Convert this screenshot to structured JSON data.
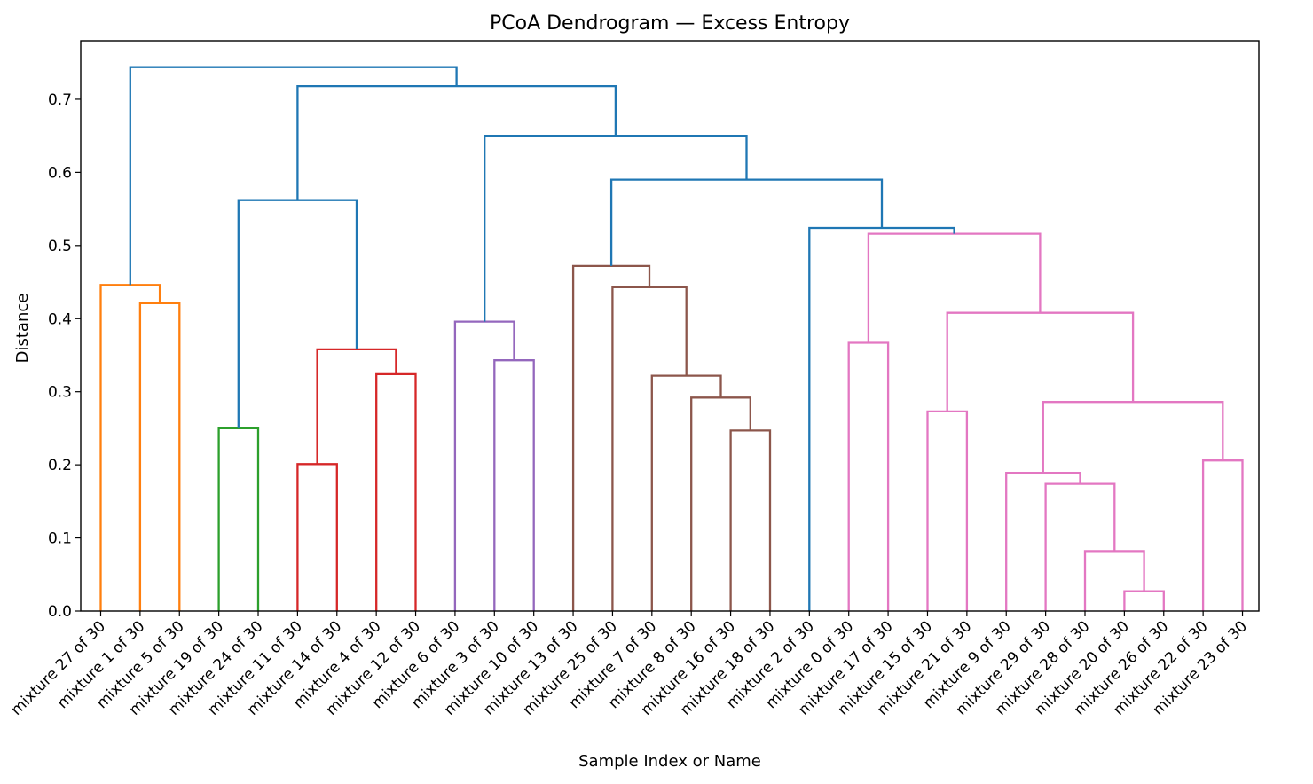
{
  "chart_data": {
    "type": "dendrogram",
    "title": "PCoA Dendrogram — Excess Entropy",
    "xlabel": "Sample Index or Name",
    "ylabel": "Distance",
    "ylim": [
      0,
      0.78
    ],
    "yticks": [
      "0.0",
      "0.1",
      "0.2",
      "0.3",
      "0.4",
      "0.5",
      "0.6",
      "0.7"
    ],
    "grid": false,
    "leaves": [
      "mixture 27 of 30",
      "mixture 1 of 30",
      "mixture 5 of 30",
      "mixture 19 of 30",
      "mixture 24 of 30",
      "mixture 11 of 30",
      "mixture 14 of 30",
      "mixture 4 of 30",
      "mixture 12 of 30",
      "mixture 6 of 30",
      "mixture 3 of 30",
      "mixture 10 of 30",
      "mixture 13 of 30",
      "mixture 25 of 30",
      "mixture 7 of 30",
      "mixture 8 of 30",
      "mixture 16 of 30",
      "mixture 18 of 30",
      "mixture 2 of 30",
      "mixture 0 of 30",
      "mixture 17 of 30",
      "mixture 15 of 30",
      "mixture 21 of 30",
      "mixture 9 of 30",
      "mixture 29 of 30",
      "mixture 28 of 30",
      "mixture 20 of 30",
      "mixture 26 of 30",
      "mixture 22 of 30",
      "mixture 23 of 30"
    ],
    "colors": {
      "above_threshold": "#1f77b4",
      "orange": "#ff7f0e",
      "green": "#2ca02c",
      "red": "#d62728",
      "purple": "#9467bd",
      "brown": "#8c564b",
      "pink": "#e377c2"
    },
    "merges": [
      {
        "left": "L1",
        "right": "L2",
        "height": 0.421,
        "color": "orange"
      },
      {
        "left": "L0",
        "right": "M0",
        "height": 0.446,
        "color": "orange"
      },
      {
        "left": "L3",
        "right": "L4",
        "height": 0.25,
        "color": "green"
      },
      {
        "left": "L5",
        "right": "L6",
        "height": 0.201,
        "color": "red"
      },
      {
        "left": "L7",
        "right": "L8",
        "height": 0.324,
        "color": "red"
      },
      {
        "left": "M3",
        "right": "M4",
        "height": 0.358,
        "color": "red"
      },
      {
        "left": "L10",
        "right": "L11",
        "height": 0.343,
        "color": "purple"
      },
      {
        "left": "L9",
        "right": "M6",
        "height": 0.396,
        "color": "purple"
      },
      {
        "left": "L16",
        "right": "L17",
        "height": 0.247,
        "color": "brown"
      },
      {
        "left": "L15",
        "right": "M8",
        "height": 0.292,
        "color": "brown"
      },
      {
        "left": "L14",
        "right": "M9",
        "height": 0.322,
        "color": "brown"
      },
      {
        "left": "L13",
        "right": "M10",
        "height": 0.443,
        "color": "brown"
      },
      {
        "left": "L12",
        "right": "M11",
        "height": 0.472,
        "color": "brown"
      },
      {
        "left": "L19",
        "right": "L20",
        "height": 0.367,
        "color": "pink"
      },
      {
        "left": "L21",
        "right": "L22",
        "height": 0.273,
        "color": "pink"
      },
      {
        "left": "L26",
        "right": "L27",
        "height": 0.027,
        "color": "pink"
      },
      {
        "left": "L25",
        "right": "M15",
        "height": 0.082,
        "color": "pink"
      },
      {
        "left": "L24",
        "right": "M16",
        "height": 0.174,
        "color": "pink"
      },
      {
        "left": "L23",
        "right": "M17",
        "height": 0.189,
        "color": "pink"
      },
      {
        "left": "L28",
        "right": "L29",
        "height": 0.206,
        "color": "pink"
      },
      {
        "left": "M18",
        "right": "M19",
        "height": 0.286,
        "color": "pink"
      },
      {
        "left": "M14",
        "right": "M20",
        "height": 0.408,
        "color": "pink"
      },
      {
        "left": "M13",
        "right": "M21",
        "height": 0.516,
        "color": "pink"
      },
      {
        "left": "L18",
        "right": "M22",
        "height": 0.524,
        "color": "above_threshold"
      },
      {
        "left": "M12",
        "right": "M23",
        "height": 0.59,
        "color": "above_threshold"
      },
      {
        "left": "M7",
        "right": "M24",
        "height": 0.65,
        "color": "above_threshold"
      },
      {
        "left": "M2",
        "right": "M5",
        "height": 0.562,
        "color": "above_threshold"
      },
      {
        "left": "M26",
        "right": "M25",
        "height": 0.718,
        "color": "above_threshold"
      },
      {
        "left": "M1",
        "right": "M27",
        "height": 0.744,
        "color": "above_threshold"
      }
    ]
  }
}
